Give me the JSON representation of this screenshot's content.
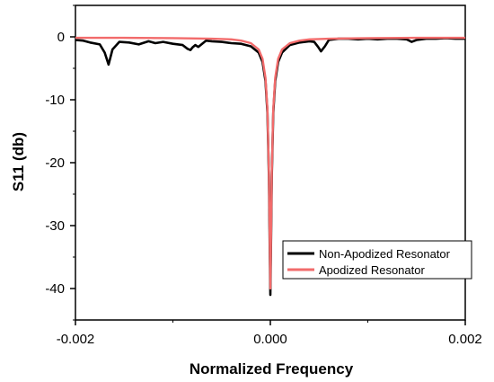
{
  "chart_data": {
    "type": "line",
    "title": "",
    "xlabel": "Normalized Frequency",
    "ylabel": "S11 (db)",
    "xlim": [
      -0.002,
      0.002
    ],
    "ylim": [
      -45,
      5
    ],
    "x_ticks": [
      {
        "value": -0.002,
        "label": "-0.002"
      },
      {
        "value": 0.0,
        "label": "0.000"
      },
      {
        "value": 0.002,
        "label": "0.002"
      }
    ],
    "y_ticks": [
      {
        "value": 0,
        "label": "0"
      },
      {
        "value": -10,
        "label": "-10"
      },
      {
        "value": -20,
        "label": "-20"
      },
      {
        "value": -30,
        "label": "-30"
      },
      {
        "value": -40,
        "label": "-40"
      }
    ],
    "legend_position": "lower-right",
    "series": [
      {
        "name": "Non-Apodized Resonator",
        "color": "#000000",
        "x": [
          -0.002,
          -0.00192,
          -0.00185,
          -0.00175,
          -0.0017,
          -0.00166,
          -0.00162,
          -0.00155,
          -0.00145,
          -0.00135,
          -0.00125,
          -0.00118,
          -0.0011,
          -0.001,
          -0.0009,
          -0.00085,
          -0.00082,
          -0.0008,
          -0.00077,
          -0.00074,
          -0.0007,
          -0.00066,
          -0.0006,
          -0.0005,
          -0.0004,
          -0.0003,
          -0.0002,
          -0.00012,
          -8e-05,
          -5e-05,
          -3e-05,
          -1.5e-05,
          -5e-06,
          0.0,
          5e-06,
          1.5e-05,
          3e-05,
          5e-05,
          8e-05,
          0.00012,
          0.0002,
          0.0003,
          0.0004,
          0.00045,
          0.00049,
          0.00052,
          0.00056,
          0.0006,
          0.0007,
          0.0008,
          0.0009,
          0.001,
          0.0011,
          0.0012,
          0.0013,
          0.0014,
          0.00145,
          0.0015,
          0.0016,
          0.0017,
          0.0018,
          0.0019,
          0.002
        ],
        "y": [
          -0.5,
          -0.6,
          -0.9,
          -1.2,
          -2.5,
          -4.4,
          -2.0,
          -0.8,
          -0.9,
          -1.2,
          -0.7,
          -1.0,
          -0.8,
          -1.1,
          -1.3,
          -1.9,
          -2.1,
          -1.7,
          -1.3,
          -1.6,
          -1.1,
          -0.6,
          -0.7,
          -0.8,
          -1.0,
          -1.1,
          -1.5,
          -2.5,
          -4.0,
          -7.0,
          -12.0,
          -22.0,
          -35.0,
          -41.0,
          -35.0,
          -22.0,
          -12.0,
          -7.0,
          -4.0,
          -2.5,
          -1.3,
          -0.9,
          -0.7,
          -0.8,
          -1.6,
          -2.3,
          -1.5,
          -0.5,
          -0.3,
          -0.3,
          -0.4,
          -0.3,
          -0.4,
          -0.3,
          -0.3,
          -0.4,
          -0.8,
          -0.5,
          -0.3,
          -0.3,
          -0.2,
          -0.3,
          -0.3
        ]
      },
      {
        "name": "Apodized Resonator",
        "color": "#f26b6b",
        "x": [
          -0.002,
          -0.0015,
          -0.001,
          -0.0006,
          -0.0004,
          -0.0003,
          -0.0002,
          -0.00012,
          -8e-05,
          -5e-05,
          -3e-05,
          -1.5e-05,
          -5e-06,
          0.0,
          5e-06,
          1.5e-05,
          3e-05,
          5e-05,
          8e-05,
          0.00012,
          0.0002,
          0.0003,
          0.0004,
          0.0006,
          0.001,
          0.0015,
          0.002
        ],
        "y": [
          -0.15,
          -0.15,
          -0.2,
          -0.3,
          -0.4,
          -0.6,
          -1.0,
          -2.0,
          -3.5,
          -6.5,
          -11.5,
          -21.5,
          -34.0,
          -40.0,
          -34.0,
          -21.5,
          -11.5,
          -6.5,
          -3.5,
          -2.0,
          -1.0,
          -0.6,
          -0.4,
          -0.3,
          -0.2,
          -0.15,
          -0.15
        ]
      }
    ]
  }
}
